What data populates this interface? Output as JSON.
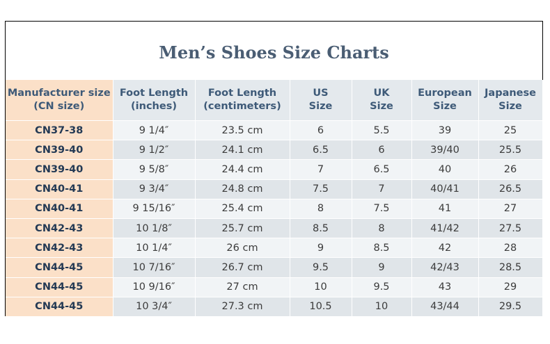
{
  "title": "Men’s Shoes Size Charts",
  "headers": [
    {
      "line1": "Manufacturer size",
      "line2": "(CN size)"
    },
    {
      "line1": "Foot Length",
      "line2": "(inches)"
    },
    {
      "line1": "Foot Length",
      "line2": "(centimeters)"
    },
    {
      "line1": "US",
      "line2": "Size"
    },
    {
      "line1": "UK",
      "line2": "Size"
    },
    {
      "line1": "European",
      "line2": "Size"
    },
    {
      "line1": "Japanese",
      "line2": "Size"
    }
  ],
  "rows": [
    [
      "CN37-38",
      "9 1/4″",
      "23.5 cm",
      "6",
      "5.5",
      "39",
      "25"
    ],
    [
      "CN39-40",
      "9 1/2″",
      "24.1 cm",
      "6.5",
      "6",
      "39/40",
      "25.5"
    ],
    [
      "CN39-40",
      "9 5/8″",
      "24.4 cm",
      "7",
      "6.5",
      "40",
      "26"
    ],
    [
      "CN40-41",
      "9 3/4″",
      "24.8 cm",
      "7.5",
      "7",
      "40/41",
      "26.5"
    ],
    [
      "CN40-41",
      "9 15/16″",
      "25.4 cm",
      "8",
      "7.5",
      "41",
      "27"
    ],
    [
      "CN42-43",
      "10 1/8″",
      "25.7 cm",
      "8.5",
      "8",
      "41/42",
      "27.5"
    ],
    [
      "CN42-43",
      "10 1/4″",
      "26 cm",
      "9",
      "8.5",
      "42",
      "28"
    ],
    [
      "CN44-45",
      "10 7/16″",
      "26.7 cm",
      "9.5",
      "9",
      "42/43",
      "28.5"
    ],
    [
      "CN44-45",
      "10 9/16″",
      "27 cm",
      "10",
      "9.5",
      "43",
      "29"
    ],
    [
      "CN44-45",
      "10 3/4″",
      "27.3 cm",
      "10.5",
      "10",
      "43/44",
      "29.5"
    ]
  ]
}
